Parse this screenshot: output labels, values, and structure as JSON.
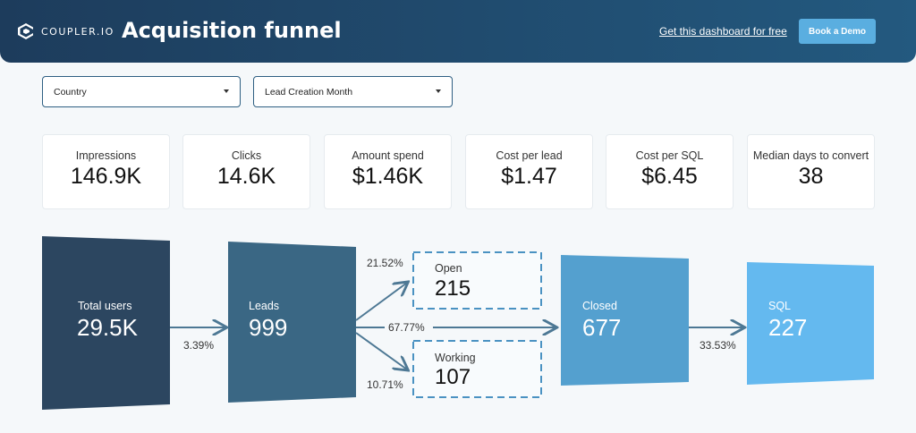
{
  "header": {
    "logo_text": "COUPLER.IO",
    "title": "Acquisition funnel",
    "link_label": "Get this dashboard for free",
    "demo_button_label": "Book a Demo"
  },
  "filters": {
    "country": "Country",
    "lead_month": "Lead Creation Month"
  },
  "kpis": [
    {
      "label": "Impressions",
      "value": "146.9K"
    },
    {
      "label": "Clicks",
      "value": "14.6K"
    },
    {
      "label": "Amount spend",
      "value": "$1.46K"
    },
    {
      "label": "Cost per lead",
      "value": "$1.47"
    },
    {
      "label": "Cost per SQL",
      "value": "$6.45"
    },
    {
      "label": "Median days to convert",
      "value": "38"
    }
  ],
  "funnel": {
    "total_users": {
      "label": "Total users",
      "value": "29.5K"
    },
    "leads": {
      "label": "Leads",
      "value": "999"
    },
    "open": {
      "label": "Open",
      "value": "215"
    },
    "working": {
      "label": "Working",
      "value": "107"
    },
    "closed": {
      "label": "Closed",
      "value": "677"
    },
    "sql": {
      "label": "SQL",
      "value": "227"
    },
    "rates": {
      "users_to_leads": "3.39%",
      "leads_to_open": "21.52%",
      "leads_to_closed": "67.77%",
      "leads_to_working": "10.71%",
      "closed_to_sql": "33.53%"
    }
  },
  "colors": {
    "header_start": "#1d3c5c",
    "header_end": "#23597f",
    "demo_button": "#5aaee0",
    "stage_total_users": "#2c4660",
    "stage_leads": "#3a6784",
    "stage_closed": "#54a0cf",
    "stage_sql": "#64b9ef",
    "arrow": "#4d7894"
  }
}
